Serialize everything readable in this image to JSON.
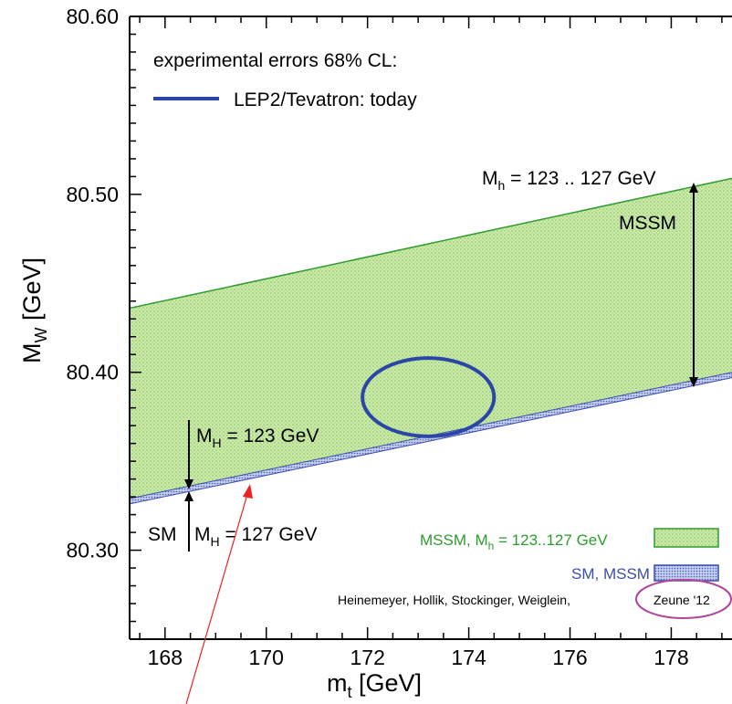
{
  "chart_data": {
    "type": "area",
    "xlabel": {
      "main": "m",
      "sub": "t",
      "unit": " [GeV]"
    },
    "ylabel": {
      "main": "M",
      "sub": "W",
      "unit": " [GeV]"
    },
    "xlim": [
      167.3,
      179.2
    ],
    "ylim": [
      80.25,
      80.6
    ],
    "x_ticks": [
      "168",
      "170",
      "172",
      "174",
      "176",
      "178"
    ],
    "y_ticks": [
      "80.30",
      "80.40",
      "80.50",
      "80.60"
    ],
    "x_tick_values": [
      168,
      170,
      172,
      174,
      176,
      178
    ],
    "y_tick_values": [
      80.3,
      80.4,
      80.5,
      80.6
    ],
    "grid": false,
    "series": [
      {
        "name": "MSSM, M_h = 123..127 GeV",
        "type": "band",
        "color": "#2e9c2e",
        "fill": "#c8e6a0",
        "x": [
          167.3,
          179.2
        ],
        "lower": [
          80.327,
          80.398
        ],
        "upper": [
          80.436,
          80.509
        ]
      },
      {
        "name": "SM, MSSM",
        "type": "band",
        "color": "#3a4faa",
        "fill": "#a9b6e2",
        "x": [
          167.3,
          179.2
        ],
        "lower": [
          80.326,
          80.397
        ],
        "upper": [
          80.329,
          80.4
        ]
      }
    ],
    "ellipse": {
      "label": "LEP2/Tevatron: today",
      "color": "#2c46a8",
      "cx": 173.2,
      "cy": 80.386,
      "rx": 1.3,
      "ry": 0.022
    }
  },
  "legend": {
    "heading": "experimental errors 68% CL:",
    "line_label": "LEP2/Tevatron: today",
    "mssm_label": {
      "main": "MSSM, M",
      "sub": "h",
      "rest": " = 123..127 GeV"
    },
    "sm_mssm_label": "SM, MSSM",
    "authors": "Heinemeyer, Hollik, Stockinger, Weiglein,",
    "authors_highlight": "Zeune '12"
  },
  "annotations": {
    "mh_mssm": {
      "main": "M",
      "sub": "h",
      "rest": " = 123 .. 127 GeV"
    },
    "mssm": "MSSM",
    "mh_123": {
      "main": "M",
      "sub": "H",
      "rest": " = 123 GeV"
    },
    "mh_127": {
      "main": "M",
      "sub": "H",
      "rest": " = 127 GeV"
    },
    "sm": "SM"
  },
  "colors": {
    "mssm_band": "#c8e6a0",
    "mssm_edge": "#2e9c2e",
    "sm_band": "#a9b6e2",
    "sm_edge": "#3a4faa",
    "ellipse": "#2c46a8",
    "sm_text": "#e02020",
    "highlight_circle": "#b0459a",
    "arrow_red": "#ee2222"
  }
}
